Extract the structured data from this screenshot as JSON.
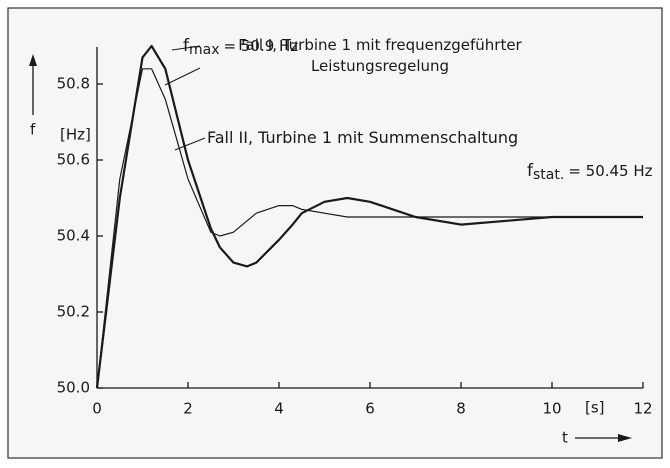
{
  "chart_data": {
    "type": "line",
    "y_label": "f",
    "y_unit": "[Hz]",
    "x_label": "t",
    "x_unit": "[s]",
    "x": [
      0,
      0.5,
      1,
      1.2,
      1.5,
      2,
      2.5,
      2.7,
      3,
      3.3,
      3.5,
      4,
      4.3,
      4.5,
      5,
      5.5,
      6,
      6.5,
      7,
      8,
      9,
      10,
      11,
      12
    ],
    "series": [
      {
        "name": "Fall I, Turbine 1 mit frequenzgeführter Leistungsregelung",
        "color": "#1a1a1a",
        "width": 2.2,
        "values": [
          50.0,
          50.5,
          50.87,
          50.9,
          50.84,
          50.6,
          50.42,
          50.37,
          50.33,
          50.32,
          50.33,
          50.39,
          50.43,
          50.46,
          50.49,
          50.5,
          50.49,
          50.47,
          50.45,
          50.43,
          50.44,
          50.45,
          50.45,
          50.45
        ]
      },
      {
        "name": "Fall II, Turbine 1 mit Summenschaltung",
        "color": "#1a1a1a",
        "width": 1.2,
        "values": [
          50.0,
          50.55,
          50.84,
          50.84,
          50.76,
          50.55,
          50.41,
          50.4,
          50.41,
          50.44,
          50.46,
          50.48,
          50.48,
          50.47,
          50.46,
          50.45,
          50.45,
          50.45,
          50.45,
          50.45,
          50.45,
          50.45,
          50.45,
          50.45
        ]
      }
    ],
    "annotations": [
      {
        "symbol": "f",
        "subscript": "max",
        "text": "= 50.9 Hz"
      },
      {
        "symbol": "f",
        "subscript": "stat.",
        "text": "= 50.45 Hz"
      }
    ],
    "xlim": [
      0,
      12
    ],
    "xticks": [
      0,
      2,
      4,
      6,
      8,
      10,
      12
    ],
    "ylim": [
      50,
      50.95
    ],
    "yticks": [
      {
        "value": 50,
        "label": "50.0"
      },
      50.2,
      50.4,
      50.6,
      50.8
    ]
  }
}
